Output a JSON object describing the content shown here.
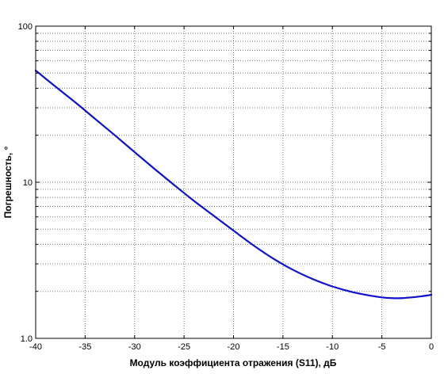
{
  "chart_data": {
    "type": "line",
    "title": "",
    "xlabel": "Модуль коэффициента отражения (S11), дБ",
    "ylabel": "Погрешность, °",
    "xlim": [
      -40,
      0
    ],
    "ylim": [
      1.0,
      100
    ],
    "y_scale": "log",
    "grid": "on (major and minor)",
    "x_ticks": [
      -40,
      -35,
      -30,
      -25,
      -20,
      -15,
      -10,
      -5,
      0
    ],
    "x_tick_labels": [
      "-40",
      "-35",
      "-30",
      "-25",
      "-20",
      "-15",
      "-10",
      "-5",
      "0"
    ],
    "y_ticks": [
      1,
      10,
      100
    ],
    "y_tick_labels": [
      "1.0",
      "10",
      "100"
    ],
    "series": [
      {
        "color": "#1010d0",
        "x": [
          -40,
          -38,
          -36,
          -34,
          -32,
          -30,
          -28,
          -26,
          -24,
          -22,
          -20,
          -18,
          -16,
          -14,
          -12,
          -10,
          -8,
          -6,
          -5,
          -4,
          -3,
          -2,
          -1,
          0
        ],
        "y": [
          52,
          41,
          32.5,
          25.5,
          20,
          15.6,
          12.2,
          9.6,
          7.6,
          6.1,
          4.9,
          3.95,
          3.25,
          2.75,
          2.4,
          2.15,
          1.98,
          1.87,
          1.83,
          1.81,
          1.81,
          1.83,
          1.86,
          1.9
        ]
      }
    ]
  }
}
